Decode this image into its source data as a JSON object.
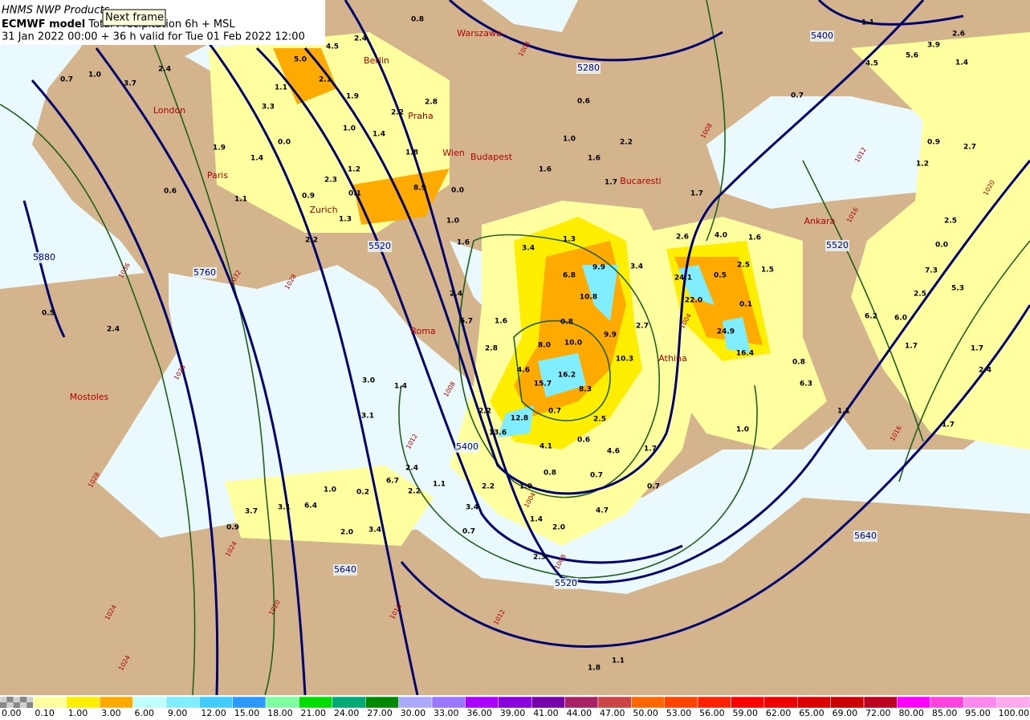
{
  "header": {
    "source": "HNMS NWP Products",
    "model": "ECMWF model",
    "product": "Total Precipitation 6h + MSL",
    "valid": "31 Jan 2022 00:00 + 36 h valid for Tue 01 Feb 2022 12:00"
  },
  "tooltip": "Next frame",
  "cities": [
    "Warszawa",
    "Berlin",
    "London",
    "Praha",
    "Wien",
    "Budapest",
    "Paris",
    "Zurich",
    "Bucaresti",
    "Ankara",
    "Roma",
    "Athina",
    "Mostoles"
  ],
  "height_labels": [
    "5400",
    "5280",
    "5520",
    "5520",
    "5880",
    "5760",
    "5400",
    "5640",
    "5520",
    "5640"
  ],
  "pressure_labels": [
    "1008",
    "1008",
    "1012",
    "1016",
    "1020",
    "1032",
    "1036",
    "1028",
    "1028",
    "1028",
    "1024",
    "1020",
    "1024",
    "1024",
    "1016",
    "1012",
    "1008",
    "1004",
    "1012",
    "1008",
    "1004",
    "1016"
  ],
  "precip_labels": [
    "0.8",
    "2.4",
    "4.5",
    "1.1",
    "1.0",
    "0.7",
    "2.4",
    "3.7",
    "5.0",
    "2.1",
    "1.1",
    "3.3",
    "1.9",
    "2.8",
    "2.2",
    "1.0",
    "1.4",
    "0.0",
    "1.9",
    "1.4",
    "1.8",
    "1.2",
    "2.3",
    "0.1",
    "8.9",
    "0.0",
    "1.1",
    "0.6",
    "0.9",
    "1.0",
    "1.3",
    "2.2",
    "1.6",
    "3.4",
    "1.3",
    "9.9",
    "6.8",
    "3.4",
    "0.8",
    "10.8",
    "9.9",
    "10.0",
    "8.0",
    "4.6",
    "16.2",
    "15.7",
    "8.3",
    "0.7",
    "2.2",
    "12.8",
    "13.6",
    "4.1",
    "0.6",
    "2.5",
    "4.6",
    "0.8",
    "0.7",
    "1.7",
    "2.2",
    "1.0",
    "3.4",
    "0.7",
    "1.4",
    "2.0",
    "4.7",
    "0.7",
    "2.3",
    "2.4",
    "5.7",
    "1.6",
    "2.8",
    "3.0",
    "1.4",
    "3.1",
    "2.4",
    "2.2",
    "6.7",
    "1.1",
    "1.0",
    "0.2",
    "3.7",
    "3.1",
    "6.4",
    "0.9",
    "2.0",
    "3.4",
    "0.5",
    "2.4",
    "2.6",
    "4.0",
    "1.6",
    "24.1",
    "0.5",
    "2.5",
    "22.0",
    "0.1",
    "24.9",
    "2.7",
    "16.4",
    "1.5",
    "10.3",
    "0.8",
    "6.3",
    "1.1",
    "7.3",
    "5.3",
    "2.5",
    "6.2",
    "6.0",
    "1.7",
    "1.7",
    "2.4",
    "1.7",
    "2.5",
    "0.0",
    "1.2",
    "0.9",
    "2.7",
    "5.6",
    "3.9",
    "2.6",
    "1.4",
    "4.5",
    "0.7",
    "0.6",
    "1.0",
    "2.2",
    "1.6",
    "1.6",
    "1.7",
    "1.7",
    "1.8",
    "1.1",
    "1.0"
  ],
  "colorbar": {
    "labels": [
      "0.00",
      "0.10",
      "1.00",
      "3.00",
      "6.00",
      "9.00",
      "12.00",
      "15.00",
      "18.00",
      "21.00",
      "24.00",
      "27.00",
      "30.00",
      "33.00",
      "36.00",
      "39.00",
      "41.00",
      "44.00",
      "47.00",
      "50.00",
      "53.00",
      "56.00",
      "59.00",
      "62.00",
      "65.00",
      "69.00",
      "72.00",
      "80.00",
      "85.00",
      "95.00",
      "100.00"
    ],
    "colors": [
      "#d0d0d0",
      "#ffffa0",
      "#ffee00",
      "#ffaa00",
      "#c0ffff",
      "#80eeff",
      "#40ccff",
      "#2b99ff",
      "#7fff9f",
      "#00dd00",
      "#00aa77",
      "#008800",
      "#aaaaff",
      "#9977ff",
      "#aa00ff",
      "#8800dd",
      "#7700aa",
      "#aa2266",
      "#cc4444",
      "#ff6600",
      "#ff4400",
      "#ff2200",
      "#ff0000",
      "#ee0000",
      "#dd0000",
      "#cc0000",
      "#bb0022",
      "#ff00ff",
      "#ff44dd",
      "#ff88ee",
      "#ffaaee"
    ]
  }
}
